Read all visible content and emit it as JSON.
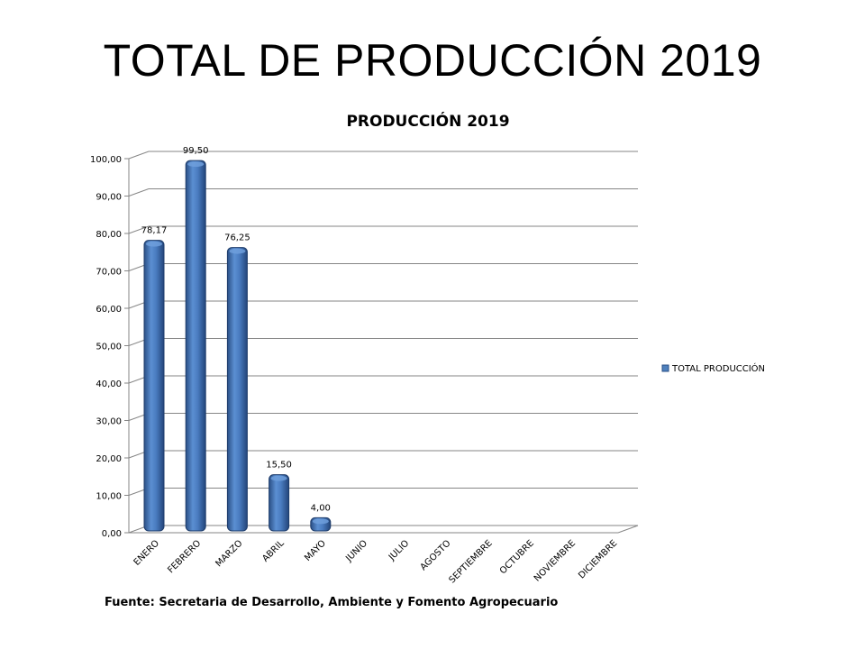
{
  "slide": {
    "title": "TOTAL DE PRODUCCIÓN 2019",
    "source": "Fuente: Secretaria de Desarrollo, Ambiente y Fomento Agropecuario"
  },
  "chart_data": {
    "type": "bar",
    "title": "PRODUCCIÓN 2019",
    "categories": [
      "ENERO",
      "FEBRERO",
      "MARZO",
      "ABRIL",
      "MAYO",
      "JUNIO",
      "JULIO",
      "AGOSTO",
      "SEPTIEMBRE",
      "OCTUBRE",
      "NOVIEMBRE",
      "DICIEMBRE"
    ],
    "series": [
      {
        "name": "TOTAL PRODUCCIÓN",
        "values": [
          78.17,
          99.5,
          76.25,
          15.5,
          4.0,
          null,
          null,
          null,
          null,
          null,
          null,
          null
        ],
        "value_labels": [
          "78,17",
          "99,50",
          "76,25",
          "15,50",
          "4,00",
          "",
          "",
          "",
          "",
          "",
          "",
          ""
        ],
        "color": "#4F81BD"
      }
    ],
    "ylim": [
      0,
      100
    ],
    "yticks": [
      0,
      10,
      20,
      30,
      40,
      50,
      60,
      70,
      80,
      90,
      100
    ],
    "ytick_labels": [
      "0,00",
      "10,00",
      "20,00",
      "30,00",
      "40,00",
      "50,00",
      "60,00",
      "70,00",
      "80,00",
      "90,00",
      "100,00"
    ],
    "xlabel": "",
    "ylabel": "",
    "grid": true,
    "legend": "right",
    "style": "3d-cylinder"
  }
}
